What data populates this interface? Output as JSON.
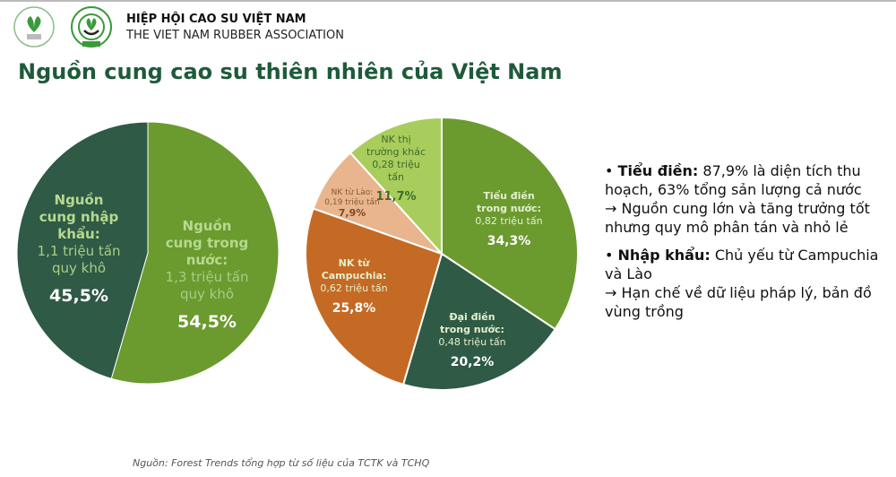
{
  "header": {
    "org_name_vi": "HIỆP HỘI CAO SU VIỆT NAM",
    "org_name_en": "THE VIET NAM RUBBER ASSOCIATION"
  },
  "title": "Nguồn cung cao su thiên nhiên của Việt Nam",
  "chart_data": [
    {
      "type": "pie",
      "slices": [
        {
          "heading": "Nguồn cung trong nước:",
          "detail": "1,3 triệu tấn quy khô",
          "value": 54.5,
          "value_label": "54,5%",
          "color": "#6b9a2f"
        },
        {
          "heading": "Nguồn cung nhập khẩu:",
          "detail": "1,1 triệu tấn quy khô",
          "value": 45.5,
          "value_label": "45,5%",
          "color": "#2f5a45"
        }
      ]
    },
    {
      "type": "pie",
      "slices": [
        {
          "heading": "Tiểu điền trong nước:",
          "detail": "0,82 triệu tấn",
          "value": 34.3,
          "value_label": "34,3%",
          "color": "#6b9a2f"
        },
        {
          "heading": "Đại điền trong nước:",
          "detail": "0,48 triệu tấn",
          "value": 20.2,
          "value_label": "20,2%",
          "color": "#2f5a45"
        },
        {
          "heading": "NK từ Campuchia:",
          "detail": "0,62 triệu tấn",
          "value": 25.8,
          "value_label": "25,8%",
          "color": "#c46a24"
        },
        {
          "heading": "NK từ Lào:",
          "detail": "0,19 triệu tấn",
          "value": 7.9,
          "value_label": "7,9%",
          "color": "#e8b58e"
        },
        {
          "heading": "NK thị trường khác",
          "detail": "0,28 triệu tấn",
          "value": 11.7,
          "value_label": "11,7%",
          "color": "#a8cd5c"
        }
      ]
    }
  ],
  "bullets": [
    {
      "bold": "Tiểu điền:",
      "text": " 87,9% là diện tích thu hoạch, 63% tổng sản lượng cả nước",
      "arrow": "→ Nguồn cung lớn và tăng trưởng tốt nhưng quy mô phân tán và nhỏ lẻ"
    },
    {
      "bold": "Nhập khẩu:",
      "text": " Chủ yếu từ Campuchia và Lào",
      "arrow": "→ Hạn chế về dữ liệu pháp lý, bản đồ vùng trồng"
    }
  ],
  "source": "Nguồn: Forest Trends tổng hợp từ số liệu của TCTK và TCHQ"
}
